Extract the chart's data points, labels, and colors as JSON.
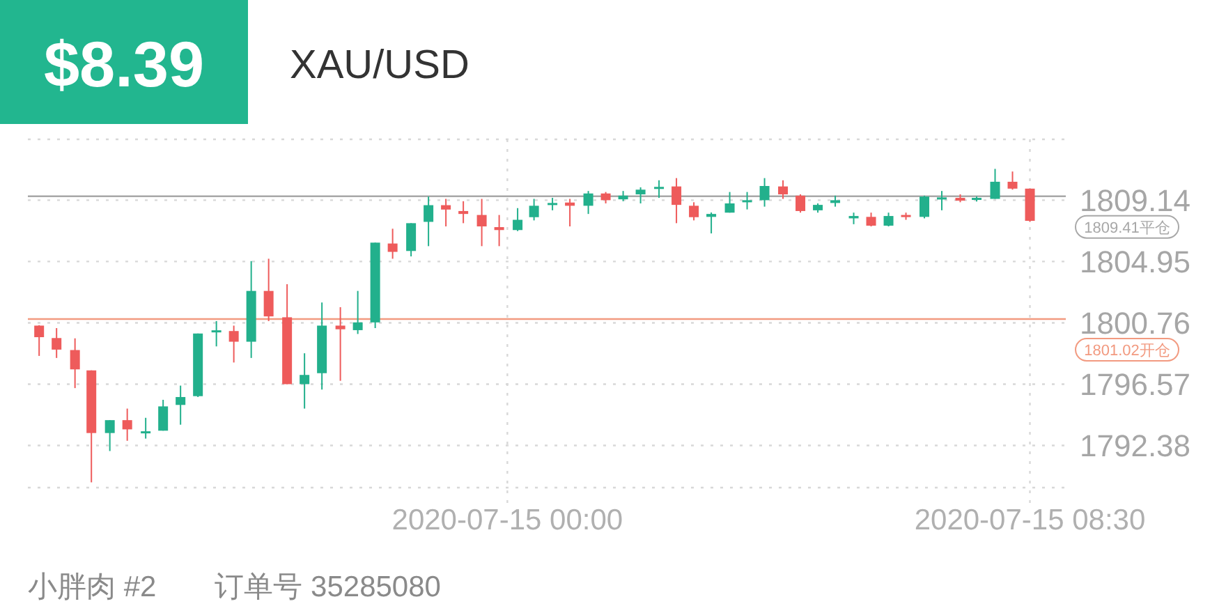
{
  "chart_data": {
    "type": "candlestick",
    "title": "XAU/USD",
    "subtitle": "$8.39",
    "annotations": [
      "小胖肉 #2",
      "订单号 35285080"
    ],
    "x": [
      "2020-07-14T16:23",
      "2020-07-14T16:40",
      "2020-07-14T16:58",
      "2020-07-14T17:14",
      "2020-07-14T17:32",
      "2020-07-14T17:49",
      "2020-07-14T18:07",
      "2020-07-14T18:24",
      "2020-07-14T18:41",
      "2020-07-14T18:58",
      "2020-07-14T19:16",
      "2020-07-14T19:33",
      "2020-07-14T19:50",
      "2020-07-14T20:07",
      "2020-07-14T20:25",
      "2020-07-14T20:42",
      "2020-07-14T20:59",
      "2020-07-14T21:17",
      "2020-07-14T21:34",
      "2020-07-14T21:51",
      "2020-07-14T22:08",
      "2020-07-14T22:26",
      "2020-07-14T22:43",
      "2020-07-14T23:00",
      "2020-07-14T23:17",
      "2020-07-14T23:35",
      "2020-07-14T23:52",
      "2020-07-15T00:10",
      "2020-07-15T00:26",
      "2020-07-15T00:44",
      "2020-07-15T01:01",
      "2020-07-15T01:19",
      "2020-07-15T01:36",
      "2020-07-15T01:53",
      "2020-07-15T02:10",
      "2020-07-15T02:28",
      "2020-07-15T02:45",
      "2020-07-15T03:02",
      "2020-07-15T03:19",
      "2020-07-15T03:37",
      "2020-07-15T03:54",
      "2020-07-15T04:11",
      "2020-07-15T04:29",
      "2020-07-15T04:46",
      "2020-07-15T05:03",
      "2020-07-15T05:20",
      "2020-07-15T05:38",
      "2020-07-15T05:55",
      "2020-07-15T06:12",
      "2020-07-15T06:29",
      "2020-07-15T06:47",
      "2020-07-15T07:04",
      "2020-07-15T07:22",
      "2020-07-15T07:38",
      "2020-07-15T07:56",
      "2020-07-15T08:13",
      "2020-07-15T08:30"
    ],
    "ohlc": [
      [
        1800.57,
        1800.6,
        1798.5,
        1799.78
      ],
      [
        1799.72,
        1800.4,
        1798.36,
        1798.93
      ],
      [
        1798.9,
        1799.7,
        1796.3,
        1797.58
      ],
      [
        1797.51,
        1797.51,
        1789.86,
        1793.23
      ],
      [
        1793.23,
        1794.11,
        1792.0,
        1794.11
      ],
      [
        1794.11,
        1794.9,
        1792.7,
        1793.48
      ],
      [
        1793.25,
        1794.27,
        1792.85,
        1793.35
      ],
      [
        1793.39,
        1795.5,
        1793.39,
        1795.05
      ],
      [
        1795.15,
        1796.47,
        1793.8,
        1795.69
      ],
      [
        1795.75,
        1800.03,
        1795.69,
        1800.03
      ],
      [
        1800.15,
        1800.88,
        1799.15,
        1800.25
      ],
      [
        1800.2,
        1800.57,
        1798.05,
        1799.47
      ],
      [
        1799.47,
        1804.98,
        1798.36,
        1802.94
      ],
      [
        1802.94,
        1805.14,
        1800.88,
        1801.2
      ],
      [
        1801.14,
        1803.4,
        1796.57,
        1796.57
      ],
      [
        1796.57,
        1798.68,
        1794.9,
        1797.2
      ],
      [
        1797.32,
        1802.15,
        1796.2,
        1800.57
      ],
      [
        1800.57,
        1801.83,
        1796.8,
        1800.32
      ],
      [
        1800.26,
        1802.94,
        1800.0,
        1800.79
      ],
      [
        1800.79,
        1806.24,
        1800.4,
        1806.24
      ],
      [
        1806.18,
        1807.19,
        1805.14,
        1805.61
      ],
      [
        1805.67,
        1807.57,
        1805.3,
        1807.57
      ],
      [
        1807.66,
        1809.39,
        1806.0,
        1808.8
      ],
      [
        1808.8,
        1809.23,
        1807.35,
        1808.5
      ],
      [
        1808.4,
        1809.07,
        1807.57,
        1808.2
      ],
      [
        1808.13,
        1809.23,
        1806.0,
        1807.35
      ],
      [
        1807.3,
        1808.13,
        1806.0,
        1807.1
      ],
      [
        1807.1,
        1808.6,
        1807.03,
        1807.8
      ],
      [
        1807.98,
        1809.23,
        1807.76,
        1808.76
      ],
      [
        1808.88,
        1809.3,
        1808.45,
        1808.95
      ],
      [
        1808.98,
        1809.23,
        1807.35,
        1808.76
      ],
      [
        1808.76,
        1809.77,
        1808.2,
        1809.6
      ],
      [
        1809.6,
        1809.7,
        1808.92,
        1809.14
      ],
      [
        1809.2,
        1809.77,
        1809.07,
        1809.45
      ],
      [
        1809.54,
        1810.02,
        1808.92,
        1809.86
      ],
      [
        1809.98,
        1810.5,
        1809.3,
        1810.05
      ],
      [
        1810.08,
        1810.65,
        1807.57,
        1808.82
      ],
      [
        1808.76,
        1809.0,
        1807.76,
        1807.98
      ],
      [
        1808.0,
        1808.3,
        1806.87,
        1808.2
      ],
      [
        1808.29,
        1809.7,
        1808.29,
        1808.92
      ],
      [
        1809.02,
        1809.7,
        1808.51,
        1809.14
      ],
      [
        1809.14,
        1810.65,
        1808.7,
        1810.11
      ],
      [
        1810.08,
        1810.5,
        1809.23,
        1809.54
      ],
      [
        1809.45,
        1809.54,
        1808.29,
        1808.4
      ],
      [
        1808.45,
        1808.92,
        1808.29,
        1808.82
      ],
      [
        1808.95,
        1809.45,
        1808.7,
        1809.14
      ],
      [
        1807.9,
        1808.29,
        1807.5,
        1808.06
      ],
      [
        1808.0,
        1808.29,
        1807.35,
        1807.4
      ],
      [
        1807.4,
        1808.29,
        1807.35,
        1808.06
      ],
      [
        1808.13,
        1808.29,
        1807.8,
        1808.0
      ],
      [
        1808.0,
        1809.45,
        1807.9,
        1809.39
      ],
      [
        1809.27,
        1809.77,
        1808.45,
        1809.33
      ],
      [
        1809.3,
        1809.54,
        1809.0,
        1809.11
      ],
      [
        1809.18,
        1809.4,
        1809.05,
        1809.3
      ],
      [
        1809.23,
        1811.28,
        1809.23,
        1810.4
      ],
      [
        1810.4,
        1811.1,
        1809.86,
        1809.93
      ],
      [
        1809.93,
        1809.93,
        1807.66,
        1807.73
      ]
    ],
    "colors": [
      "#ee5b5b",
      "#ee5b5b",
      "#ee5b5b",
      "#ee5b5b",
      "#22b08c",
      "#ee5b5b",
      "#22b08c",
      "#22b08c",
      "#22b08c",
      "#22b08c",
      "#22b08c",
      "#ee5b5b",
      "#22b08c",
      "#ee5b5b",
      "#ee5b5b",
      "#22b08c",
      "#22b08c",
      "#ee5b5b",
      "#22b08c",
      "#22b08c",
      "#ee5b5b",
      "#22b08c",
      "#22b08c",
      "#ee5b5b",
      "#ee5b5b",
      "#ee5b5b",
      "#ee5b5b",
      "#22b08c",
      "#22b08c",
      "#22b08c",
      "#ee5b5b",
      "#22b08c",
      "#ee5b5b",
      "#22b08c",
      "#22b08c",
      "#22b08c",
      "#ee5b5b",
      "#ee5b5b",
      "#22b08c",
      "#22b08c",
      "#22b08c",
      "#22b08c",
      "#ee5b5b",
      "#ee5b5b",
      "#22b08c",
      "#22b08c",
      "#22b08c",
      "#ee5b5b",
      "#22b08c",
      "#ee5b5b",
      "#22b08c",
      "#22b08c",
      "#ee5b5b",
      "#22b08c",
      "#22b08c",
      "#ee5b5b",
      "#ee5b5b"
    ],
    "xlim": [
      "2020-07-14T16:12",
      "2020-07-15T09:05"
    ],
    "xticks": [
      {
        "value": "2020-07-15T00:00",
        "label": "2020-07-15 00:00"
      },
      {
        "value": "2020-07-15T08:30",
        "label": "2020-07-15 08:30"
      }
    ],
    "ylim": [
      1789.5,
      1813.3
    ],
    "yticks": [
      1792.38,
      1796.57,
      1800.76,
      1804.95,
      1809.14
    ],
    "grid": true,
    "ref_lines": [
      {
        "axis": "y",
        "value": 1809.41,
        "label": "1809.41平仓",
        "color": "#a8a8a8"
      },
      {
        "axis": "y",
        "value": 1801.02,
        "label": "1801.02开仓",
        "color": "#f29a80"
      }
    ]
  }
}
